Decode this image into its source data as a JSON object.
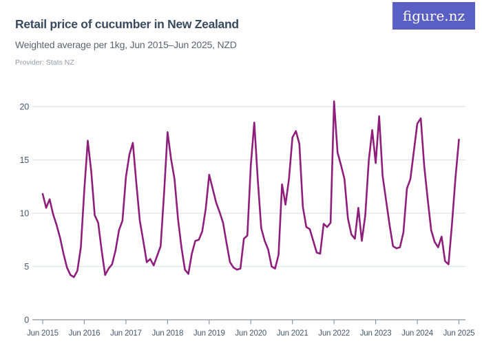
{
  "header": {
    "title": "Retail price of cucumber in New Zealand",
    "subtitle": "Weighted average per 1kg, Jun 2015–Jun 2025, NZD",
    "provider": "Provider: Stats NZ"
  },
  "logo": {
    "text": "figure.nz",
    "bg_color": "#5a5fc4",
    "text_color": "#ffffff"
  },
  "chart_data": {
    "type": "line",
    "title": "Retail price of cucumber in New Zealand",
    "subtitle": "Weighted average per 1kg, Jun 2015–Jun 2025, NZD",
    "unit": "NZD per 1kg",
    "frequency": "monthly",
    "x_start": "Jun 2015",
    "x_end": "Jun 2025",
    "x_tick_labels": [
      "Jun 2015",
      "Jun 2016",
      "Jun 2017",
      "Jun 2018",
      "Jun 2019",
      "Jun 2020",
      "Jun 2021",
      "Jun 2022",
      "Jun 2023",
      "Jun 2024",
      "Jun 2025"
    ],
    "y_ticks": [
      0,
      5,
      10,
      15,
      20
    ],
    "ylim": [
      0,
      21
    ],
    "grid": "horizontal",
    "legend": "none",
    "line_color": "#8f1d7c",
    "axis_label_color": "#46566c",
    "gridline_color": "#e0e2e6",
    "axis_line_color": "#8b929b",
    "values": [
      11.8,
      10.5,
      11.3,
      9.9,
      8.9,
      7.7,
      6.2,
      4.9,
      4.2,
      4.0,
      4.6,
      6.8,
      12.2,
      16.8,
      13.9,
      9.8,
      9.1,
      6.5,
      4.2,
      4.8,
      5.2,
      6.5,
      8.4,
      9.3,
      13.4,
      15.5,
      16.6,
      12.8,
      9.3,
      7.4,
      5.4,
      5.7,
      5.1,
      6.0,
      6.9,
      11.9,
      17.6,
      15.1,
      13.2,
      9.5,
      6.8,
      4.7,
      4.3,
      6.2,
      7.4,
      7.5,
      8.3,
      10.4,
      13.6,
      12.3,
      11.0,
      10.1,
      9.1,
      7.2,
      5.4,
      4.9,
      4.7,
      4.8,
      7.6,
      7.9,
      14.5,
      18.5,
      13.2,
      8.6,
      7.4,
      6.6,
      5.0,
      4.8,
      6.1,
      12.7,
      10.8,
      13.2,
      17.1,
      17.7,
      16.5,
      10.6,
      8.7,
      8.5,
      7.4,
      6.3,
      6.2,
      9.0,
      8.7,
      9.1,
      20.5,
      15.7,
      14.5,
      13.2,
      9.5,
      8.0,
      7.6,
      10.5,
      7.4,
      9.8,
      14.9,
      17.8,
      14.7,
      19.1,
      13.5,
      11.2,
      8.9,
      6.9,
      6.7,
      6.8,
      8.2,
      12.3,
      13.2,
      15.8,
      18.4,
      18.9,
      14.4,
      11.3,
      8.4,
      7.3,
      6.8,
      7.8,
      5.5,
      5.2,
      9.0,
      13.3,
      16.9
    ]
  }
}
